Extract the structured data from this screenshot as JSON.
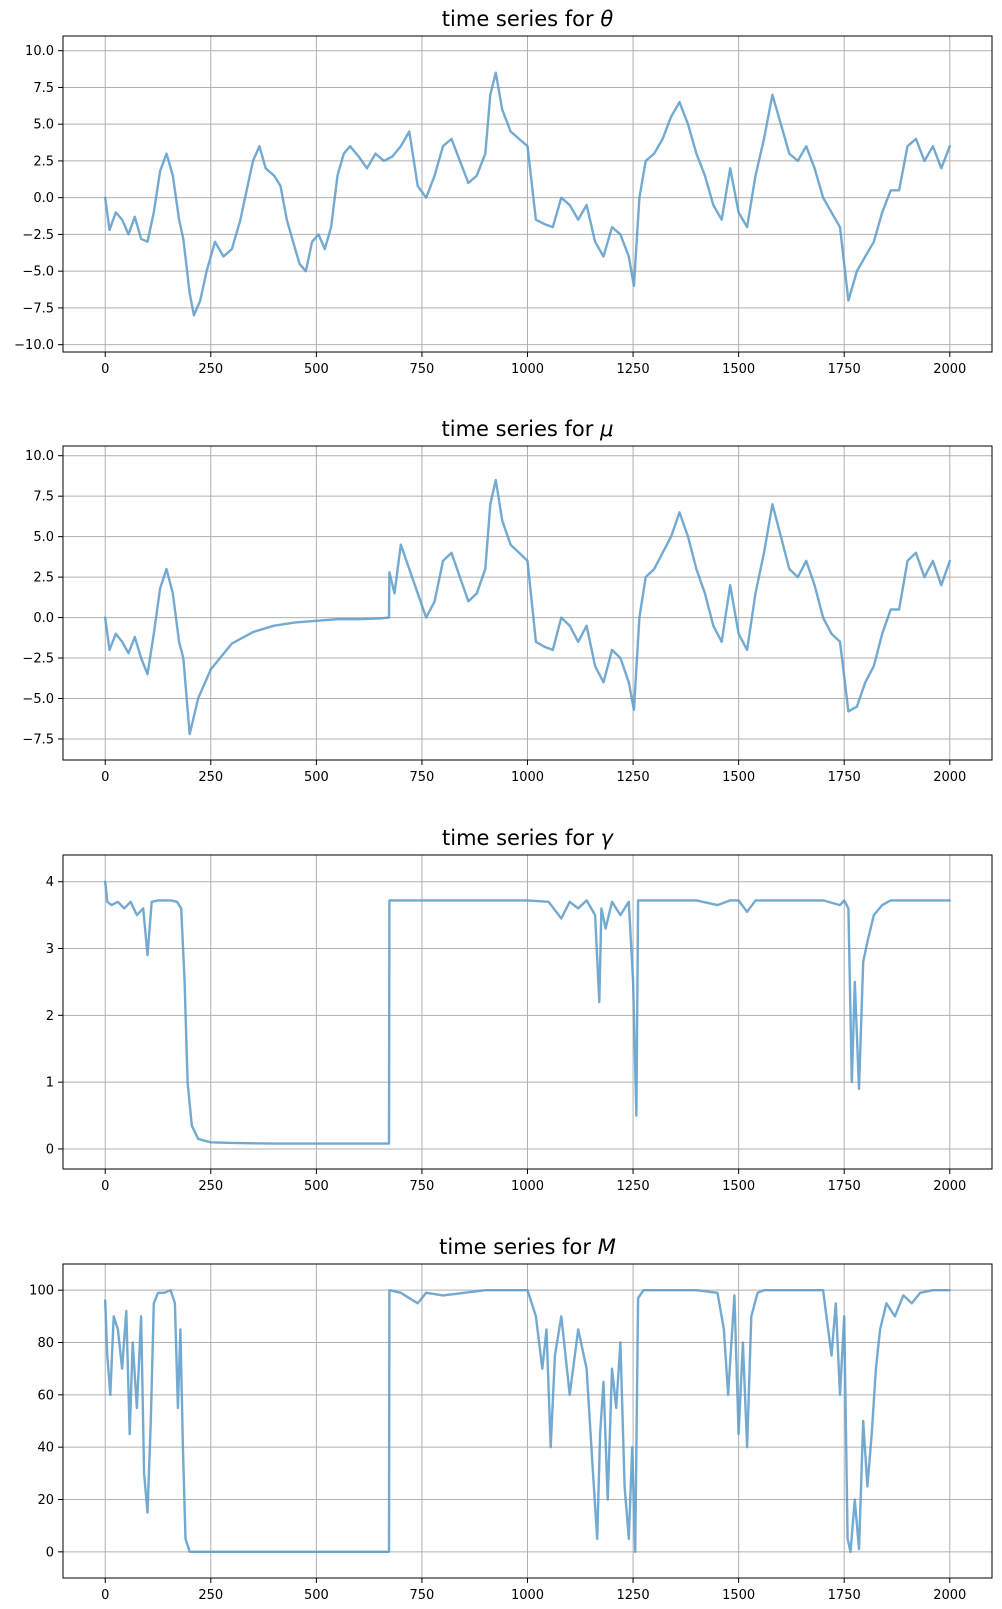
{
  "colors": {
    "series": "#5b9bc9"
  },
  "chart_data": [
    {
      "type": "line",
      "title_prefix": "time series for ",
      "symbol": "θ",
      "xlim": [
        -100,
        2100
      ],
      "ylim": [
        -10.5,
        11.0
      ],
      "xticks": [
        0,
        250,
        500,
        750,
        1000,
        1250,
        1500,
        1750,
        2000
      ],
      "xtick_labels": [
        "0",
        "250",
        "500",
        "750",
        "1000",
        "1250",
        "1500",
        "1750",
        "2000"
      ],
      "yticks": [
        -10,
        -7.5,
        -5,
        -2.5,
        0,
        2.5,
        5,
        7.5,
        10
      ],
      "ytick_labels": [
        "−10.0",
        "−7.5",
        "−5.0",
        "−2.5",
        "0.0",
        "2.5",
        "5.0",
        "7.5",
        "10.0"
      ],
      "grid": true,
      "series": [
        {
          "x": [
            0,
            10,
            25,
            40,
            55,
            70,
            85,
            100,
            115,
            130,
            145,
            160,
            175,
            185,
            200,
            210,
            225,
            240,
            260,
            280,
            300,
            320,
            335,
            350,
            365,
            380,
            400,
            415,
            430,
            445,
            460,
            475,
            490,
            505,
            520,
            535,
            550,
            565,
            580,
            600,
            620,
            640,
            660,
            680,
            700,
            720,
            740,
            760,
            780,
            800,
            820,
            840,
            860,
            880,
            900,
            912,
            925,
            940,
            960,
            980,
            1000,
            1020,
            1040,
            1060,
            1080,
            1100,
            1120,
            1140,
            1160,
            1180,
            1200,
            1220,
            1240,
            1252,
            1265,
            1280,
            1300,
            1320,
            1340,
            1360,
            1380,
            1400,
            1420,
            1440,
            1460,
            1480,
            1500,
            1520,
            1540,
            1560,
            1580,
            1600,
            1620,
            1640,
            1660,
            1680,
            1700,
            1720,
            1740,
            1760,
            1780,
            1800,
            1820,
            1840,
            1860,
            1880,
            1900,
            1920,
            1940,
            1960,
            1980,
            2000
          ],
          "y": [
            0.0,
            -2.2,
            -1.0,
            -1.5,
            -2.5,
            -1.3,
            -2.8,
            -3.0,
            -1.0,
            1.8,
            3.0,
            1.5,
            -1.5,
            -2.8,
            -6.5,
            -8.0,
            -7.0,
            -5.0,
            -3.0,
            -4.0,
            -3.5,
            -1.5,
            0.5,
            2.5,
            3.5,
            2.0,
            1.5,
            0.8,
            -1.5,
            -3.0,
            -4.5,
            -5.0,
            -3.0,
            -2.5,
            -3.5,
            -2.0,
            1.5,
            3.0,
            3.5,
            2.8,
            2.0,
            3.0,
            2.5,
            2.8,
            3.5,
            4.5,
            0.8,
            0.0,
            1.5,
            3.5,
            4.0,
            2.5,
            1.0,
            1.5,
            3.0,
            7.0,
            8.5,
            6.0,
            4.5,
            4.0,
            3.5,
            -1.5,
            -1.8,
            -2.0,
            0.0,
            -0.5,
            -1.5,
            -0.5,
            -3.0,
            -4.0,
            -2.0,
            -2.5,
            -4.0,
            -6.0,
            0.0,
            2.5,
            3.0,
            4.0,
            5.5,
            6.5,
            5.0,
            3.0,
            1.5,
            -0.5,
            -1.5,
            2.0,
            -1.0,
            -2.0,
            1.5,
            4.0,
            7.0,
            5.0,
            3.0,
            2.5,
            3.5,
            2.0,
            0.0,
            -1.0,
            -2.0,
            -7.0,
            -5.0,
            -4.0,
            -3.0,
            -1.0,
            0.5,
            0.5,
            3.5,
            4.0,
            2.5,
            3.5,
            2.0,
            3.5
          ]
        }
      ]
    },
    {
      "type": "line",
      "title_prefix": "time series for ",
      "symbol": "μ",
      "xlim": [
        -100,
        2100
      ],
      "ylim": [
        -8.8,
        10.6
      ],
      "xticks": [
        0,
        250,
        500,
        750,
        1000,
        1250,
        1500,
        1750,
        2000
      ],
      "xtick_labels": [
        "0",
        "250",
        "500",
        "750",
        "1000",
        "1250",
        "1500",
        "1750",
        "2000"
      ],
      "yticks": [
        -7.5,
        -5,
        -2.5,
        0,
        2.5,
        5,
        7.5,
        10
      ],
      "ytick_labels": [
        "−7.5",
        "−5.0",
        "−2.5",
        "0.0",
        "2.5",
        "5.0",
        "7.5",
        "10.0"
      ],
      "grid": true,
      "series": [
        {
          "x": [
            0,
            10,
            25,
            40,
            55,
            70,
            85,
            100,
            115,
            130,
            145,
            160,
            175,
            185,
            200,
            220,
            250,
            300,
            350,
            400,
            450,
            500,
            550,
            600,
            650,
            672,
            673,
            685,
            700,
            720,
            740,
            760,
            780,
            800,
            820,
            840,
            860,
            880,
            900,
            912,
            925,
            940,
            960,
            980,
            1000,
            1020,
            1040,
            1060,
            1080,
            1100,
            1120,
            1140,
            1160,
            1180,
            1200,
            1220,
            1240,
            1252,
            1265,
            1280,
            1300,
            1320,
            1340,
            1360,
            1380,
            1400,
            1420,
            1440,
            1460,
            1480,
            1500,
            1520,
            1540,
            1560,
            1580,
            1600,
            1620,
            1640,
            1660,
            1680,
            1700,
            1720,
            1740,
            1760,
            1780,
            1800,
            1820,
            1840,
            1860,
            1880,
            1900,
            1920,
            1940,
            1960,
            1980,
            2000
          ],
          "y": [
            0.0,
            -2.0,
            -1.0,
            -1.5,
            -2.2,
            -1.2,
            -2.5,
            -3.5,
            -1.0,
            1.8,
            3.0,
            1.5,
            -1.5,
            -2.5,
            -7.2,
            -5.0,
            -3.2,
            -1.6,
            -0.9,
            -0.5,
            -0.3,
            -0.2,
            -0.1,
            -0.1,
            -0.05,
            0.0,
            2.8,
            1.5,
            4.5,
            3.0,
            1.5,
            0.0,
            1.0,
            3.5,
            4.0,
            2.5,
            1.0,
            1.5,
            3.0,
            7.0,
            8.5,
            6.0,
            4.5,
            4.0,
            3.5,
            -1.5,
            -1.8,
            -2.0,
            0.0,
            -0.5,
            -1.5,
            -0.5,
            -3.0,
            -4.0,
            -2.0,
            -2.5,
            -4.0,
            -5.7,
            0.0,
            2.5,
            3.0,
            4.0,
            5.0,
            6.5,
            5.0,
            3.0,
            1.5,
            -0.5,
            -1.5,
            2.0,
            -1.0,
            -2.0,
            1.5,
            4.0,
            7.0,
            5.0,
            3.0,
            2.5,
            3.5,
            2.0,
            0.0,
            -1.0,
            -1.5,
            -5.8,
            -5.5,
            -4.0,
            -3.0,
            -1.0,
            0.5,
            0.5,
            3.5,
            4.0,
            2.5,
            3.5,
            2.0,
            3.5
          ]
        }
      ]
    },
    {
      "type": "line",
      "title_prefix": "time series for ",
      "symbol": "γ",
      "xlim": [
        -100,
        2100
      ],
      "ylim": [
        -0.3,
        4.4
      ],
      "xticks": [
        0,
        250,
        500,
        750,
        1000,
        1250,
        1500,
        1750,
        2000
      ],
      "xtick_labels": [
        "0",
        "250",
        "500",
        "750",
        "1000",
        "1250",
        "1500",
        "1750",
        "2000"
      ],
      "yticks": [
        0,
        1,
        2,
        3,
        4
      ],
      "ytick_labels": [
        "0",
        "1",
        "2",
        "3",
        "4"
      ],
      "grid": true,
      "series": [
        {
          "x": [
            0,
            5,
            15,
            30,
            45,
            60,
            75,
            90,
            100,
            110,
            125,
            140,
            155,
            170,
            180,
            188,
            195,
            205,
            220,
            250,
            300,
            400,
            500,
            600,
            672,
            673,
            700,
            800,
            900,
            1000,
            1050,
            1080,
            1100,
            1120,
            1140,
            1160,
            1170,
            1175,
            1185,
            1200,
            1220,
            1240,
            1250,
            1258,
            1262,
            1270,
            1300,
            1400,
            1450,
            1480,
            1500,
            1520,
            1540,
            1600,
            1700,
            1740,
            1750,
            1760,
            1768,
            1775,
            1785,
            1795,
            1805,
            1820,
            1840,
            1860,
            1900,
            2000
          ],
          "y": [
            4.0,
            3.7,
            3.65,
            3.7,
            3.6,
            3.7,
            3.5,
            3.6,
            2.9,
            3.7,
            3.72,
            3.72,
            3.72,
            3.7,
            3.6,
            2.5,
            1.0,
            0.35,
            0.15,
            0.1,
            0.09,
            0.08,
            0.08,
            0.08,
            0.08,
            3.72,
            3.72,
            3.72,
            3.72,
            3.72,
            3.7,
            3.45,
            3.7,
            3.6,
            3.72,
            3.5,
            2.2,
            3.6,
            3.3,
            3.7,
            3.5,
            3.7,
            2.5,
            0.5,
            3.72,
            3.72,
            3.72,
            3.72,
            3.65,
            3.72,
            3.72,
            3.55,
            3.72,
            3.72,
            3.72,
            3.65,
            3.72,
            3.6,
            1.0,
            2.5,
            0.9,
            2.8,
            3.1,
            3.5,
            3.65,
            3.72,
            3.72,
            3.72
          ]
        }
      ]
    },
    {
      "type": "line",
      "title_prefix": "time series for ",
      "symbol": "M",
      "xlim": [
        -100,
        2100
      ],
      "ylim": [
        -10,
        110
      ],
      "xticks": [
        0,
        250,
        500,
        750,
        1000,
        1250,
        1500,
        1750,
        2000
      ],
      "xtick_labels": [
        "0",
        "250",
        "500",
        "750",
        "1000",
        "1250",
        "1500",
        "1750",
        "2000"
      ],
      "yticks": [
        0,
        20,
        40,
        60,
        80,
        100
      ],
      "ytick_labels": [
        "0",
        "20",
        "40",
        "60",
        "80",
        "100"
      ],
      "grid": true,
      "series": [
        {
          "x": [
            0,
            5,
            12,
            20,
            30,
            40,
            50,
            58,
            65,
            75,
            85,
            92,
            100,
            108,
            115,
            125,
            140,
            155,
            165,
            172,
            178,
            184,
            190,
            200,
            300,
            500,
            672,
            673,
            700,
            740,
            760,
            800,
            900,
            1000,
            1020,
            1035,
            1045,
            1055,
            1065,
            1080,
            1100,
            1120,
            1140,
            1155,
            1165,
            1172,
            1180,
            1190,
            1200,
            1210,
            1220,
            1230,
            1240,
            1248,
            1255,
            1262,
            1275,
            1300,
            1400,
            1450,
            1465,
            1475,
            1490,
            1500,
            1510,
            1520,
            1530,
            1545,
            1560,
            1600,
            1700,
            1720,
            1730,
            1740,
            1750,
            1758,
            1765,
            1775,
            1785,
            1795,
            1805,
            1815,
            1825,
            1835,
            1850,
            1870,
            1890,
            1910,
            1930,
            1960,
            2000
          ],
          "y": [
            96,
            75,
            60,
            90,
            85,
            70,
            92,
            45,
            80,
            55,
            90,
            30,
            15,
            50,
            95,
            99,
            99,
            100,
            95,
            55,
            85,
            40,
            5,
            0,
            0,
            0,
            0,
            100,
            99,
            95,
            99,
            98,
            100,
            100,
            90,
            70,
            85,
            40,
            75,
            90,
            60,
            85,
            70,
            30,
            5,
            45,
            65,
            20,
            70,
            55,
            80,
            25,
            5,
            40,
            0,
            97,
            100,
            100,
            100,
            99,
            85,
            60,
            98,
            45,
            80,
            40,
            90,
            99,
            100,
            100,
            100,
            75,
            95,
            60,
            90,
            5,
            0,
            20,
            1,
            50,
            25,
            45,
            70,
            85,
            95,
            90,
            98,
            95,
            99,
            100,
            100
          ]
        }
      ]
    }
  ]
}
